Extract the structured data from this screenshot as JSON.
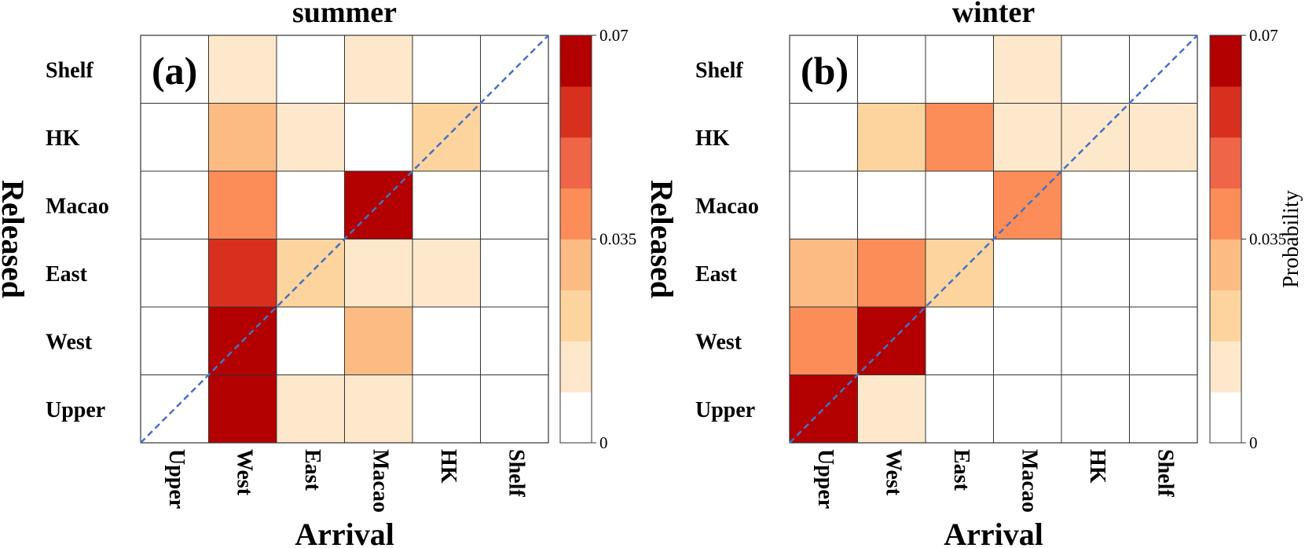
{
  "chart_data": [
    {
      "type": "heatmap",
      "title": "summer",
      "panel_label": "(a)",
      "xlabel": "Arrival",
      "ylabel": "Released",
      "x_categories": [
        "Upper",
        "West",
        "East",
        "Macao",
        "HK",
        "Shelf"
      ],
      "y_categories_top_to_bottom": [
        "Shelf",
        "HK",
        "Macao",
        "East",
        "West",
        "Upper"
      ],
      "values": [
        [
          0,
          0.008,
          0,
          0.008,
          0,
          0
        ],
        [
          0,
          0.028,
          0.008,
          0,
          0.018,
          0
        ],
        [
          0,
          0.04,
          0,
          0.07,
          0,
          0
        ],
        [
          0,
          0.06,
          0.02,
          0.008,
          0.008,
          0
        ],
        [
          0,
          0.07,
          0,
          0.028,
          0,
          0
        ],
        [
          0,
          0.07,
          0.008,
          0.008,
          0,
          0
        ]
      ],
      "diagonal_line": true,
      "grid": true,
      "colorbar": {
        "min": 0,
        "max": 0.07,
        "tick_labels": [
          "0",
          "0.035",
          "0.07"
        ],
        "tick_values": [
          0,
          0.035,
          0.07
        ],
        "label": "",
        "levels": [
          "#ffffff",
          "#fee8cb",
          "#fdd49e",
          "#fdbb84",
          "#fc8d59",
          "#ef6548",
          "#d7301f",
          "#b30000"
        ]
      }
    },
    {
      "type": "heatmap",
      "title": "winter",
      "panel_label": "(b)",
      "xlabel": "Arrival",
      "ylabel": "Released",
      "x_categories": [
        "Upper",
        "West",
        "East",
        "Macao",
        "HK",
        "Shelf"
      ],
      "y_categories_top_to_bottom": [
        "Shelf",
        "HK",
        "Macao",
        "East",
        "West",
        "Upper"
      ],
      "values": [
        [
          0,
          0,
          0,
          0.008,
          0,
          0
        ],
        [
          0,
          0.018,
          0.04,
          0.008,
          0.008,
          0.008
        ],
        [
          0,
          0,
          0,
          0.04,
          0,
          0
        ],
        [
          0.028,
          0.04,
          0.02,
          0,
          0,
          0
        ],
        [
          0.04,
          0.07,
          0,
          0,
          0,
          0
        ],
        [
          0.07,
          0.008,
          0,
          0,
          0,
          0
        ]
      ],
      "diagonal_line": true,
      "grid": true,
      "colorbar": {
        "min": 0,
        "max": 0.07,
        "tick_labels": [
          "0",
          "0.035",
          "0.07"
        ],
        "tick_values": [
          0,
          0.035,
          0.07
        ],
        "label": "Probability",
        "levels": [
          "#ffffff",
          "#fee8cb",
          "#fdd49e",
          "#fdbb84",
          "#fc8d59",
          "#ef6548",
          "#d7301f",
          "#b30000"
        ]
      }
    }
  ],
  "colors": {
    "grid_line": "#333333",
    "diagonal": "#4472c4",
    "text": "#000000"
  }
}
